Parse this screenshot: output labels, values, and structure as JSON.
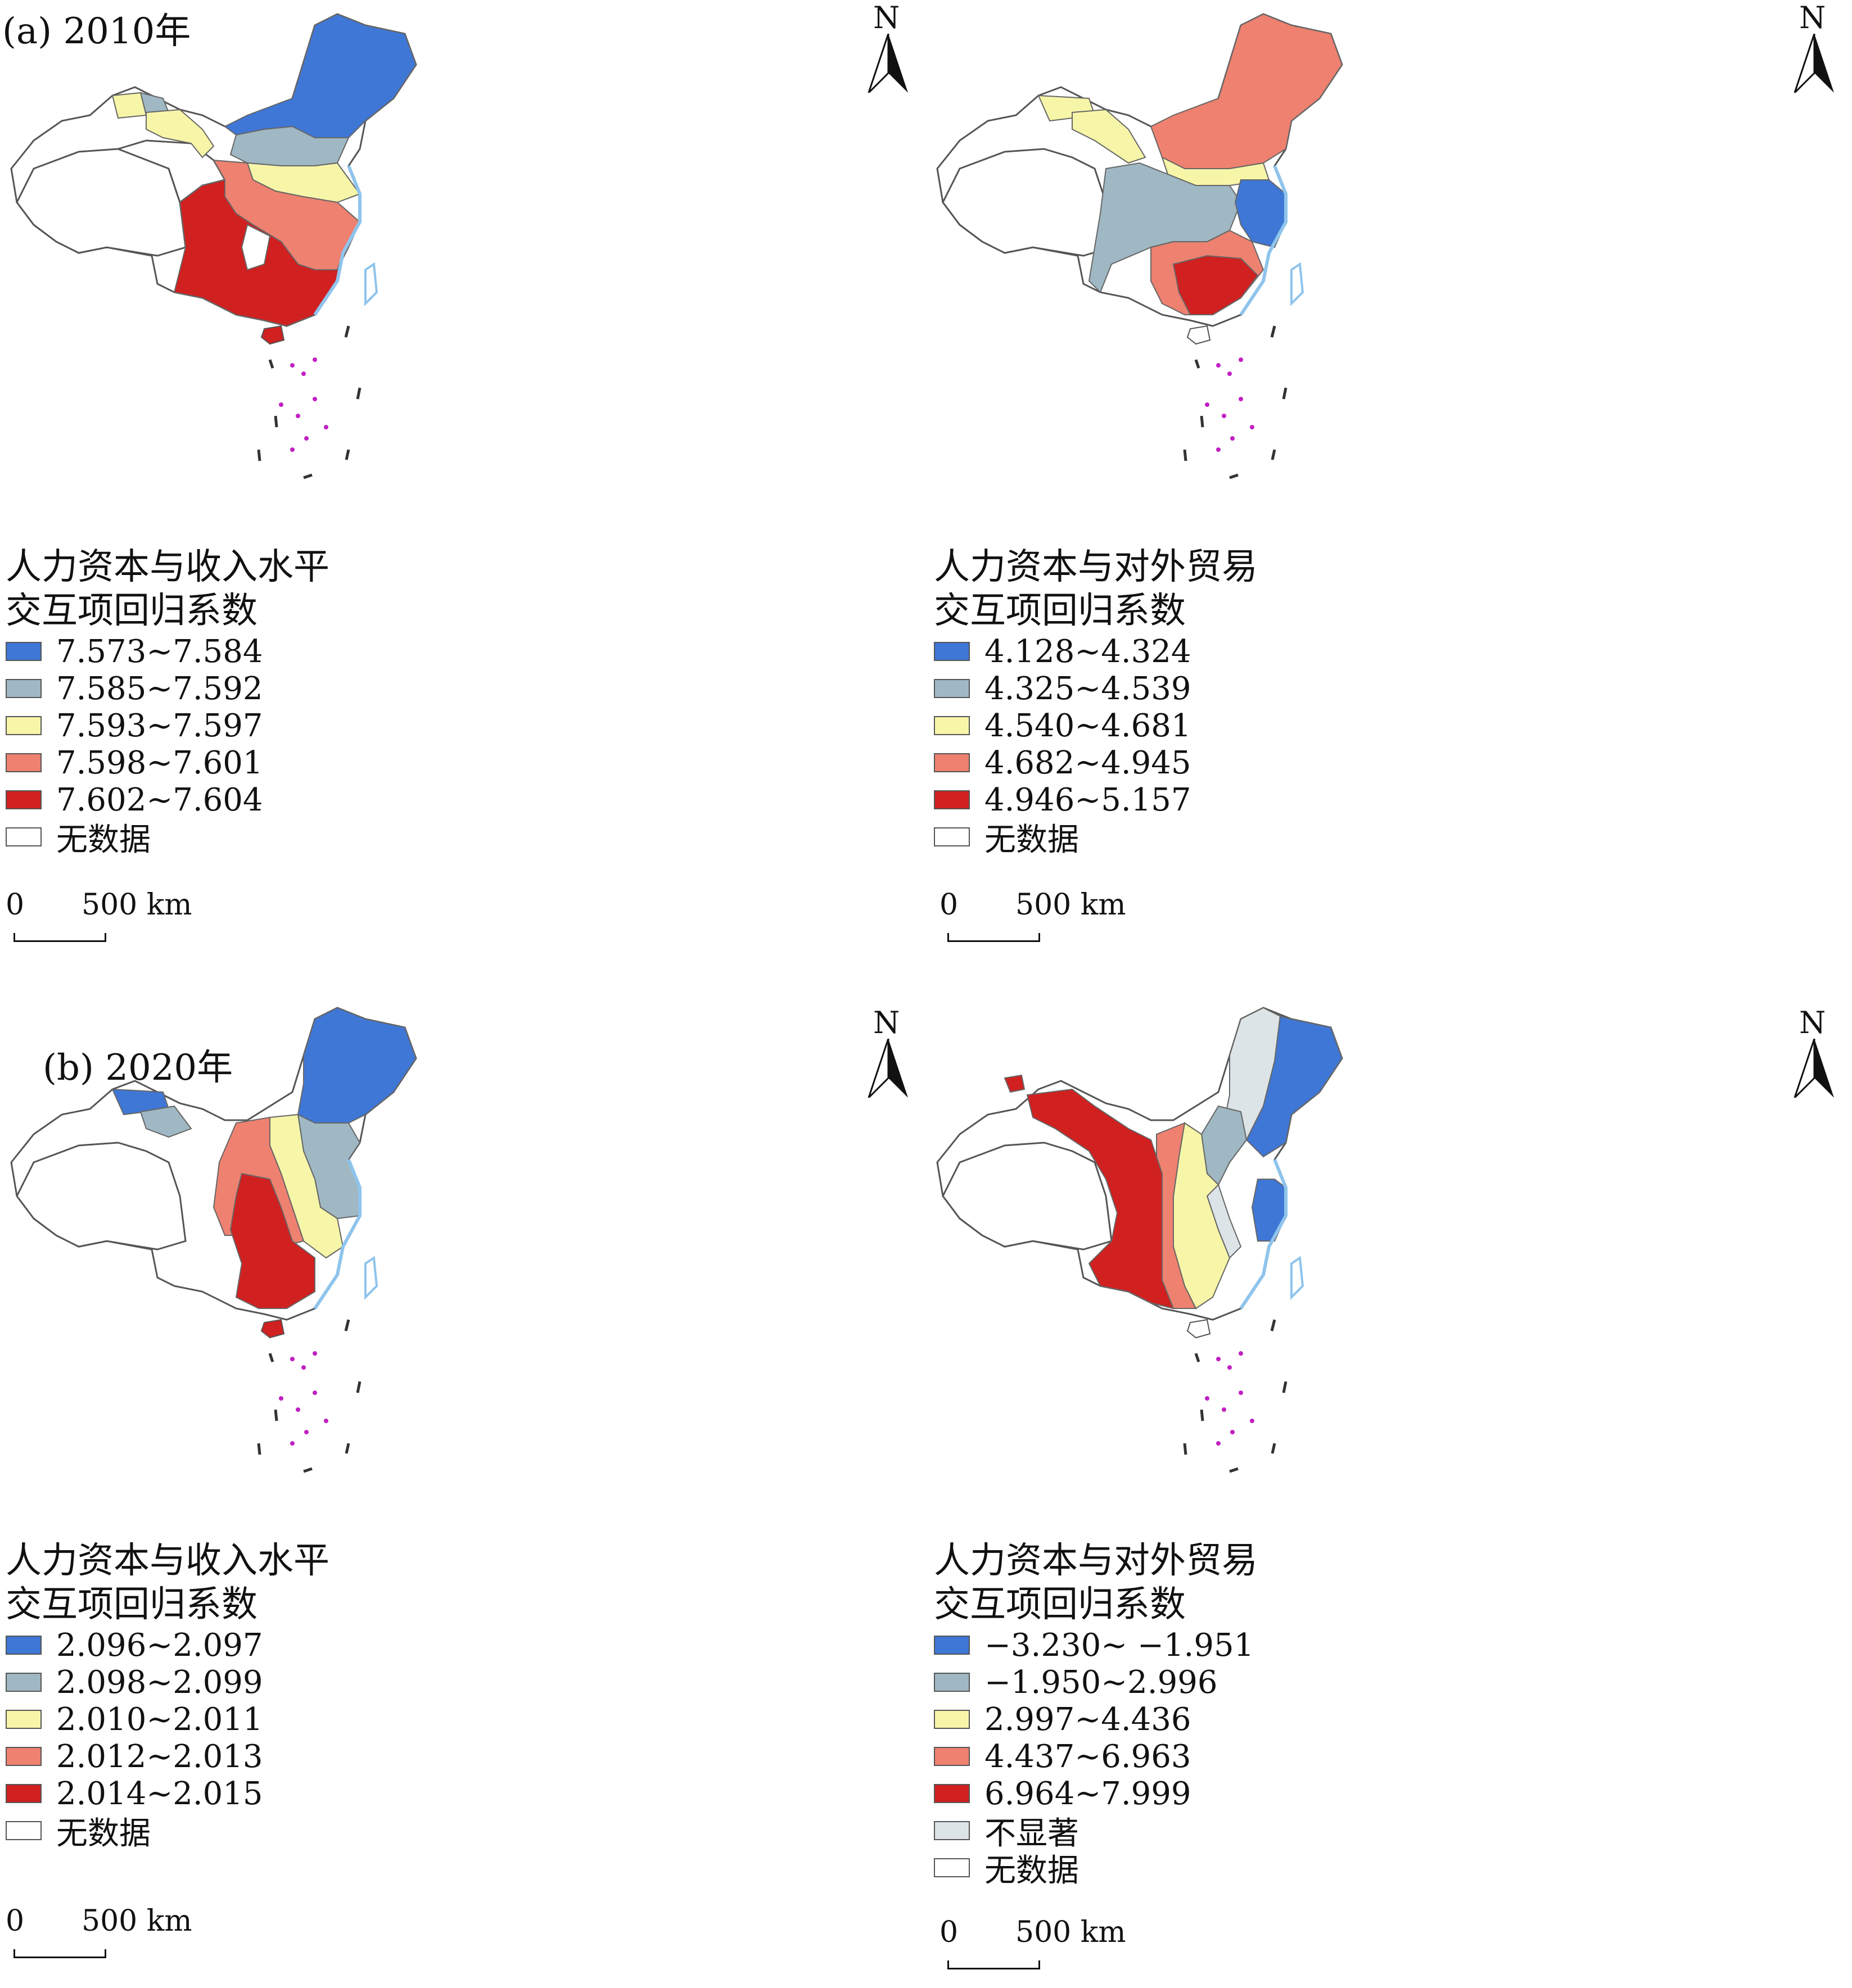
{
  "panel_labels": {
    "a": "(a) 2010年",
    "b": "(b) 2020年"
  },
  "north_label": "N",
  "scalebar": {
    "zero": "0",
    "distance": "500 km"
  },
  "colors": {
    "c1": "#3f77d6",
    "c2": "#9fb8c3",
    "c3": "#f7f6a8",
    "c4": "#ee8170",
    "c5": "#d02020",
    "not_significant": "#dde4e8",
    "no_data": "#ffffff",
    "border": "#555555",
    "coast": "#8fc4ec",
    "islands": "#c020c0"
  },
  "maps": [
    {
      "id": "a-income",
      "legend": {
        "title_line1": "人力资本与收入水平",
        "title_line2": "交互项回归系数",
        "classes": [
          "7.573~7.584",
          "7.585~7.592",
          "7.593~7.597",
          "7.598~7.601",
          "7.602~7.604"
        ],
        "no_data": "无数据"
      }
    },
    {
      "id": "a-trade",
      "legend": {
        "title_line1": "人力资本与对外贸易",
        "title_line2": "交互项回归系数",
        "classes": [
          "4.128~4.324",
          "4.325~4.539",
          "4.540~4.681",
          "4.682~4.945",
          "4.946~5.157"
        ],
        "no_data": "无数据"
      }
    },
    {
      "id": "b-income",
      "legend": {
        "title_line1": "人力资本与收入水平",
        "title_line2": "交互项回归系数",
        "classes": [
          "2.096~2.097",
          "2.098~2.099",
          "2.010~2.011",
          "2.012~2.013",
          "2.014~2.015"
        ],
        "no_data": "无数据"
      }
    },
    {
      "id": "b-trade",
      "legend": {
        "title_line1": "人力资本与对外贸易",
        "title_line2": "交互项回归系数",
        "classes": [
          "−3.230~ −1.951",
          "−1.950~2.996",
          "2.997~4.436",
          "4.437~6.963",
          "6.964~7.999"
        ],
        "not_significant": "不显著",
        "no_data": "无数据"
      }
    }
  ]
}
